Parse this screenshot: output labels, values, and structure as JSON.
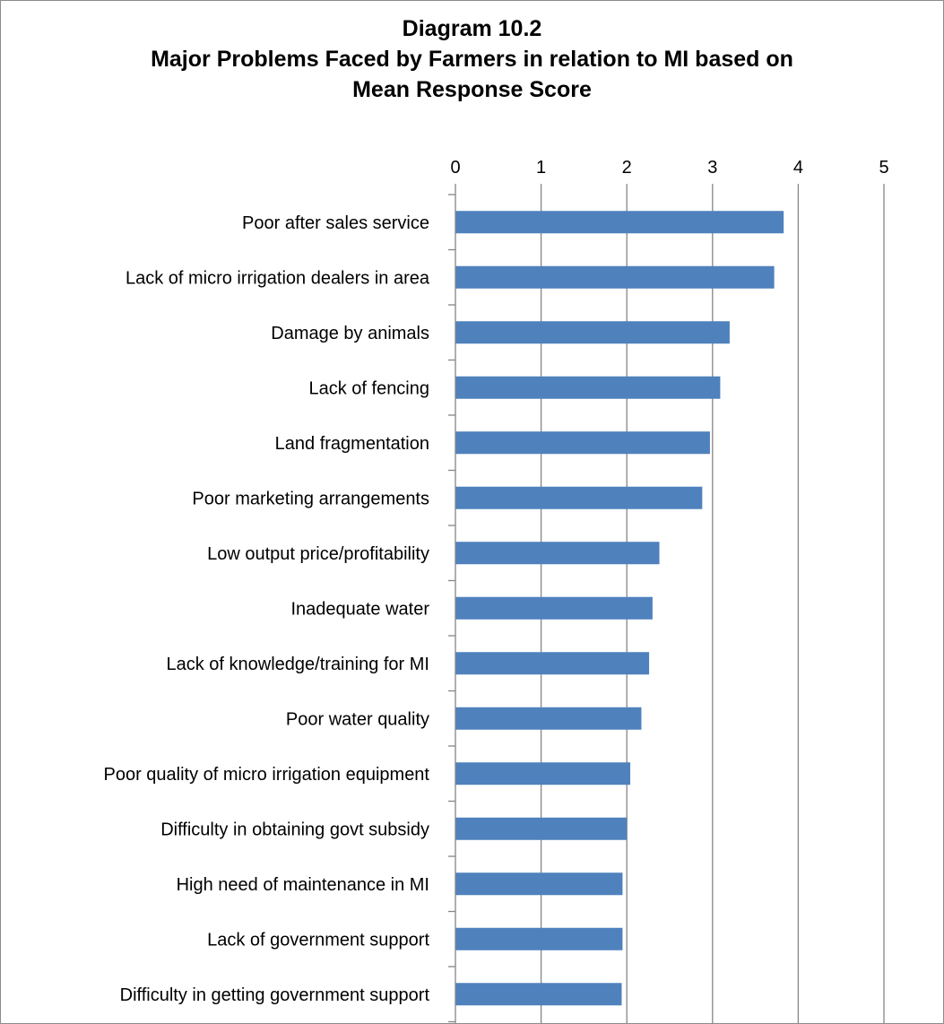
{
  "chart_data": {
    "type": "bar",
    "orientation": "horizontal",
    "title_lines": [
      "Diagram 10.2",
      "Major Problems Faced by Farmers in relation to MI based on",
      "Mean Response Score"
    ],
    "categories": [
      "Poor after sales service",
      "Lack of micro irrigation dealers in area",
      "Damage by animals",
      "Lack of fencing",
      "Land fragmentation",
      "Poor marketing arrangements",
      "Low output price/profitability",
      "Inadequate water",
      "Lack of knowledge/training for MI",
      "Poor water quality",
      "Poor quality of micro irrigation equipment",
      "Difficulty in obtaining govt subsidy",
      "High need of maintenance in MI",
      "Lack of government support",
      "Difficulty in getting government support"
    ],
    "values": [
      3.83,
      3.72,
      3.2,
      3.09,
      2.97,
      2.88,
      2.38,
      2.3,
      2.26,
      2.17,
      2.04,
      2.0,
      1.95,
      1.95,
      1.94
    ],
    "xlim": [
      0,
      5
    ],
    "xticks": [
      "0",
      "1",
      "2",
      "3",
      "4",
      "5"
    ],
    "x_axis_position": "top",
    "grid": true,
    "bar_color": "#4f81bd",
    "grid_color": "#868686"
  }
}
